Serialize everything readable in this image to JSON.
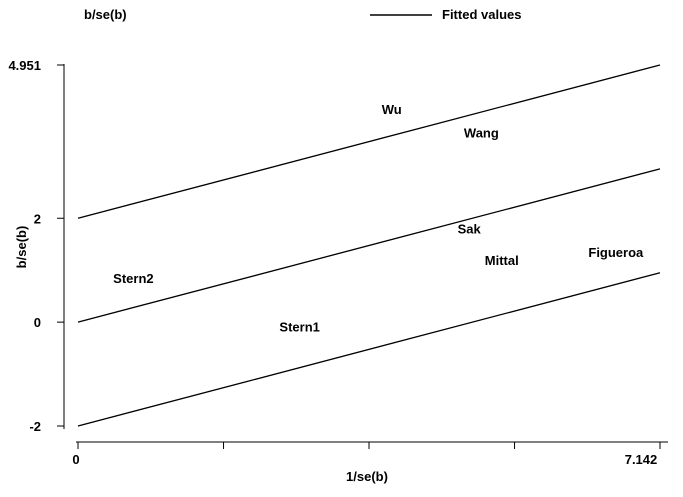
{
  "chart_data": {
    "type": "scatter",
    "title": "",
    "xlabel": "1/se(b)",
    "ylabel": "b/se(b)",
    "xlim": [
      0,
      7.142
    ],
    "ylim": [
      -2,
      4.951
    ],
    "x_ticks": [
      {
        "value": 0,
        "label": "0"
      },
      {
        "value": 1.786,
        "label": ""
      },
      {
        "value": 3.571,
        "label": ""
      },
      {
        "value": 5.357,
        "label": ""
      },
      {
        "value": 7.142,
        "label": "7.142"
      }
    ],
    "y_ticks": [
      {
        "value": -2,
        "label": "-2"
      },
      {
        "value": 0,
        "label": "0"
      },
      {
        "value": 2,
        "label": "2"
      },
      {
        "value": 4.951,
        "label": "4.951"
      }
    ],
    "legend": {
      "placement": "top",
      "entries": [
        {
          "label": "b/se(b)",
          "marker": "none"
        },
        {
          "label": "Fitted values",
          "marker": "line"
        }
      ]
    },
    "points": [
      {
        "label": "Wu",
        "x": 3.85,
        "y": 4.1
      },
      {
        "label": "Wang",
        "x": 4.95,
        "y": 3.65
      },
      {
        "label": "Sak",
        "x": 4.8,
        "y": 1.8
      },
      {
        "label": "Mittal",
        "x": 5.2,
        "y": 1.2
      },
      {
        "label": "Figueroa",
        "x": 6.6,
        "y": 1.35
      },
      {
        "label": "Stern2",
        "x": 0.68,
        "y": 0.85
      },
      {
        "label": "Stern1",
        "x": 2.72,
        "y": -0.08
      }
    ],
    "lines": [
      {
        "name": "upper",
        "x": [
          0,
          7.142
        ],
        "y": [
          2,
          4.951
        ]
      },
      {
        "name": "fitted",
        "x": [
          0,
          7.142
        ],
        "y": [
          0,
          2.951
        ]
      },
      {
        "name": "lower",
        "x": [
          0,
          7.142
        ],
        "y": [
          -2,
          0.951
        ]
      }
    ],
    "grid": false
  }
}
